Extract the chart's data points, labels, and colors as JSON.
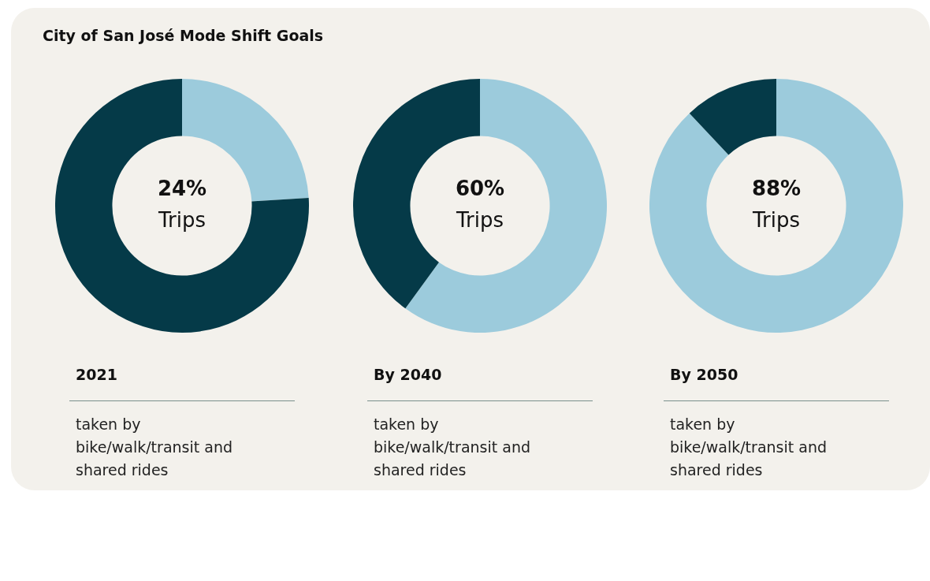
{
  "chart_data": [
    {
      "type": "donut",
      "title": "City of San José Mode Shift Goals",
      "subtitle": "2021",
      "categories": [
        null,
        null
      ],
      "values": [
        24,
        76
      ],
      "colors": [
        "#9ccbdc",
        "#053a48"
      ],
      "value_labels": [
        "24%",
        null
      ],
      "annotations": [
        "Trips",
        "taken by\nbike/walk/transit and\nshared rides"
      ]
    },
    {
      "type": "donut",
      "subtitle": "By 2040",
      "categories": [
        null,
        null
      ],
      "values": [
        60,
        40
      ],
      "colors": [
        "#9ccbdc",
        "#053a48"
      ],
      "value_labels": [
        "60%",
        null
      ],
      "annotations": [
        "Trips",
        "taken by\nbike/walk/transit and\nshared rides"
      ]
    },
    {
      "type": "donut",
      "subtitle": "By 2050",
      "categories": [
        null,
        null
      ],
      "values": [
        88,
        12
      ],
      "colors": [
        "#9ccbdc",
        "#053a48"
      ],
      "value_labels": [
        "88%",
        null
      ],
      "annotations": [
        "Trips",
        "taken by\nbike/walk/transit and\nshared rides"
      ]
    }
  ]
}
